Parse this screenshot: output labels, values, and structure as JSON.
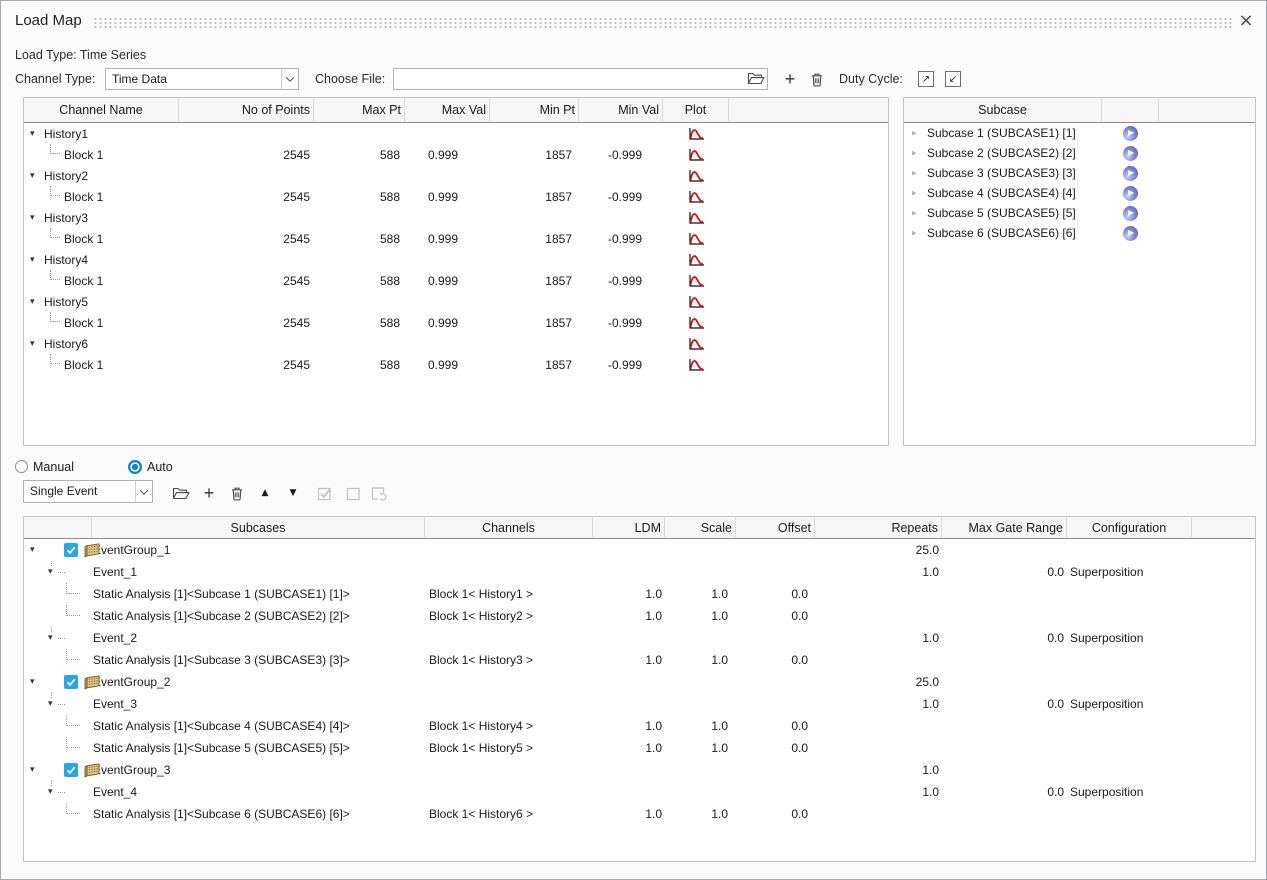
{
  "window": {
    "title": "Load Map"
  },
  "header": {
    "load_type_label": "Load Type: Time Series",
    "channel_type_label": "Channel Type:",
    "channel_type_value": "Time Data",
    "choose_file_label": "Choose File:",
    "file_value": "",
    "duty_cycle_label": "Duty Cycle:"
  },
  "channels_table": {
    "headers": [
      "Channel Name",
      "No of Points",
      "Max Pt",
      "Max Val",
      "Min Pt",
      "Min Val",
      "Plot"
    ],
    "groups": [
      {
        "name": "History1",
        "blocks": [
          {
            "name": "Block 1",
            "points": "2545",
            "max_pt": "588",
            "max_val": "0.999",
            "min_pt": "1857",
            "min_val": "-0.999"
          }
        ]
      },
      {
        "name": "History2",
        "blocks": [
          {
            "name": "Block 1",
            "points": "2545",
            "max_pt": "588",
            "max_val": "0.999",
            "min_pt": "1857",
            "min_val": "-0.999"
          }
        ]
      },
      {
        "name": "History3",
        "blocks": [
          {
            "name": "Block 1",
            "points": "2545",
            "max_pt": "588",
            "max_val": "0.999",
            "min_pt": "1857",
            "min_val": "-0.999"
          }
        ]
      },
      {
        "name": "History4",
        "blocks": [
          {
            "name": "Block 1",
            "points": "2545",
            "max_pt": "588",
            "max_val": "0.999",
            "min_pt": "1857",
            "min_val": "-0.999"
          }
        ]
      },
      {
        "name": "History5",
        "blocks": [
          {
            "name": "Block 1",
            "points": "2545",
            "max_pt": "588",
            "max_val": "0.999",
            "min_pt": "1857",
            "min_val": "-0.999"
          }
        ]
      },
      {
        "name": "History6",
        "blocks": [
          {
            "name": "Block 1",
            "points": "2545",
            "max_pt": "588",
            "max_val": "0.999",
            "min_pt": "1857",
            "min_val": "-0.999"
          }
        ]
      }
    ]
  },
  "subcase_panel": {
    "header": "Subcase",
    "items": [
      "Subcase 1 (SUBCASE1) [1]",
      "Subcase 2 (SUBCASE2) [2]",
      "Subcase 3 (SUBCASE3) [3]",
      "Subcase 4 (SUBCASE4) [4]",
      "Subcase 5 (SUBCASE5) [5]",
      "Subcase 6 (SUBCASE6) [6]"
    ]
  },
  "mode": {
    "manual_label": "Manual",
    "auto_label": "Auto",
    "selected": "Auto"
  },
  "event_toolbar": {
    "event_type_value": "Single Event"
  },
  "events_table": {
    "headers": [
      "Subcases",
      "Channels",
      "LDM",
      "Scale",
      "Offset",
      "Repeats",
      "Max Gate Range",
      "Configuration"
    ],
    "rows": [
      {
        "type": "group",
        "label": "EventGroup_1",
        "checked": true,
        "repeats": "25.0"
      },
      {
        "type": "event",
        "label": "Event_1",
        "repeats": "1.0",
        "max_gate": "0.0",
        "config": "Superposition"
      },
      {
        "type": "case",
        "label": "Static Analysis [1]<Subcase 1 (SUBCASE1) [1]>",
        "channel": "Block 1< History1 >",
        "ldm": "1.0",
        "scale": "1.0",
        "offset": "0.0"
      },
      {
        "type": "case",
        "label": "Static Analysis [1]<Subcase 2 (SUBCASE2) [2]>",
        "channel": "Block 1< History2 >",
        "ldm": "1.0",
        "scale": "1.0",
        "offset": "0.0"
      },
      {
        "type": "event",
        "label": "Event_2",
        "repeats": "1.0",
        "max_gate": "0.0",
        "config": "Superposition"
      },
      {
        "type": "case",
        "label": "Static Analysis [1]<Subcase 3 (SUBCASE3) [3]>",
        "channel": "Block 1< History3 >",
        "ldm": "1.0",
        "scale": "1.0",
        "offset": "0.0"
      },
      {
        "type": "group",
        "label": "EventGroup_2",
        "checked": true,
        "repeats": "25.0"
      },
      {
        "type": "event",
        "label": "Event_3",
        "repeats": "1.0",
        "max_gate": "0.0",
        "config": "Superposition"
      },
      {
        "type": "case",
        "label": "Static Analysis [1]<Subcase 4 (SUBCASE4) [4]>",
        "channel": "Block 1< History4 >",
        "ldm": "1.0",
        "scale": "1.0",
        "offset": "0.0"
      },
      {
        "type": "case",
        "label": "Static Analysis [1]<Subcase 5 (SUBCASE5) [5]>",
        "channel": "Block 1< History5 >",
        "ldm": "1.0",
        "scale": "1.0",
        "offset": "0.0"
      },
      {
        "type": "group",
        "label": "EventGroup_3",
        "checked": true,
        "repeats": "1.0"
      },
      {
        "type": "event",
        "label": "Event_4",
        "repeats": "1.0",
        "max_gate": "0.0",
        "config": "Superposition"
      },
      {
        "type": "case",
        "label": "Static Analysis [1]<Subcase 6 (SUBCASE6) [6]>",
        "channel": "Block 1< History6 >",
        "ldm": "1.0",
        "scale": "1.0",
        "offset": "0.0"
      }
    ]
  },
  "icons": {
    "close": "x",
    "browse": "folder-open",
    "add": "plus",
    "delete": "trash",
    "duty_export": "arrow-up-right",
    "duty_import": "arrow-down-left",
    "move_up": "triangle-up",
    "move_down": "triangle-down",
    "check_all": "checkbox-checked",
    "uncheck_all": "checkbox-empty",
    "refresh_checks": "checkbox-refresh",
    "plot": "red-signal-curve",
    "subcase_play": "play-button",
    "event_group": "load-deck",
    "expanded": "triangle-down-small",
    "collapsed": "triangle-right-small"
  },
  "colors": {
    "checkbox_blue": "#2ba5e3",
    "radio_blue": "#0a85cc",
    "plot_red": "#c81414",
    "play_purple": "#7d86d9",
    "group_icon_tan": "#dcc47f",
    "header_bg": "#f6f6f6"
  }
}
